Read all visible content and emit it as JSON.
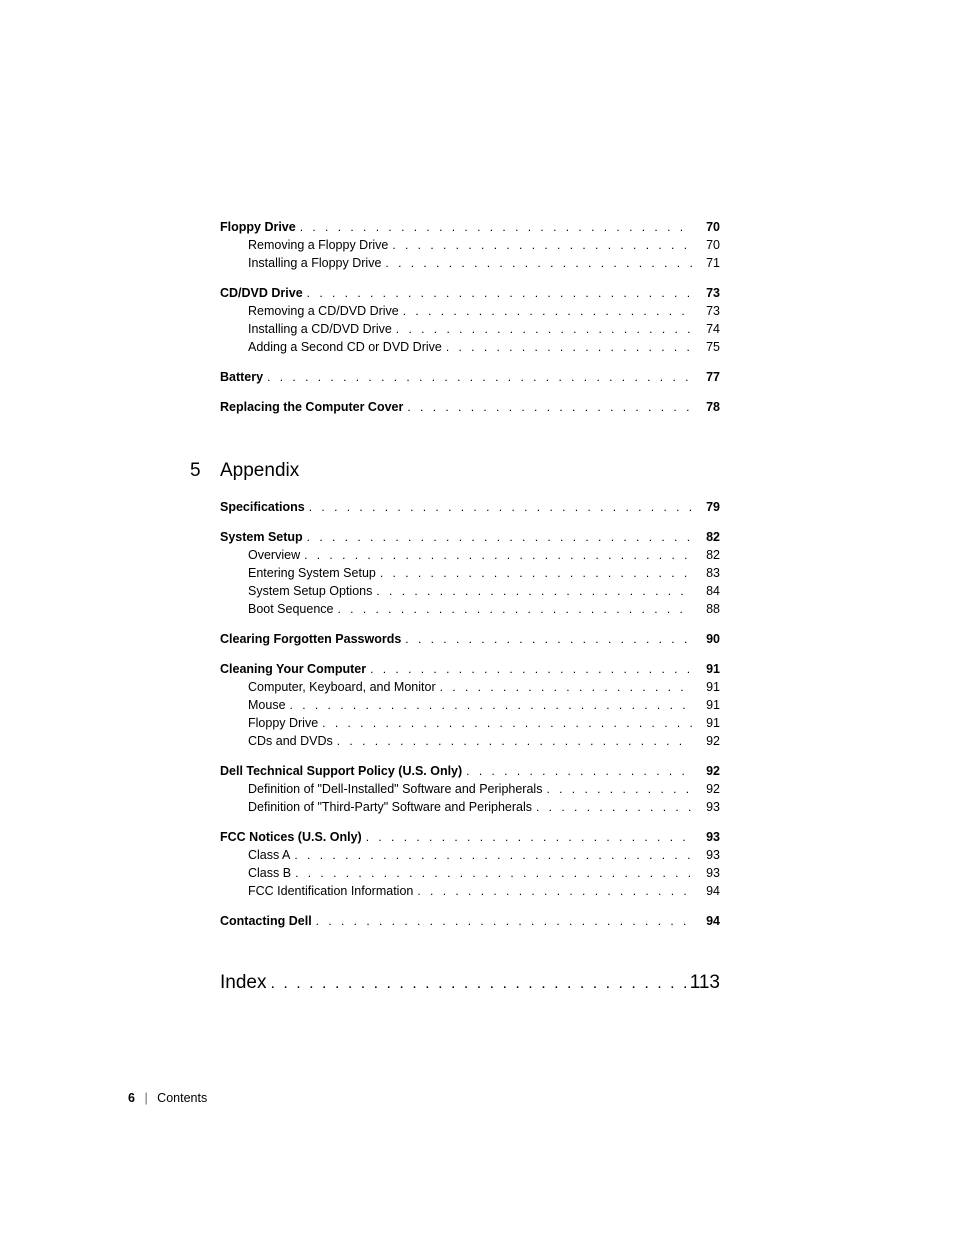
{
  "sections": [
    {
      "heading": {
        "text": "Floppy Drive",
        "page": "70"
      },
      "subs": [
        {
          "text": "Removing a Floppy Drive",
          "page": "70"
        },
        {
          "text": "Installing a Floppy Drive",
          "page": "71"
        }
      ]
    },
    {
      "heading": {
        "text": "CD/DVD Drive",
        "page": "73"
      },
      "subs": [
        {
          "text": "Removing a CD/DVD Drive",
          "page": "73"
        },
        {
          "text": "Installing a CD/DVD Drive",
          "page": "74"
        },
        {
          "text": "Adding a Second CD or DVD Drive",
          "page": "75"
        }
      ]
    },
    {
      "heading": {
        "text": "Battery",
        "page": "77"
      },
      "subs": []
    },
    {
      "heading": {
        "text": "Replacing the Computer Cover",
        "page": "78"
      },
      "subs": []
    }
  ],
  "chapter": {
    "number": "5",
    "title": "Appendix"
  },
  "appendix_sections": [
    {
      "heading": {
        "text": "Specifications",
        "page": "79"
      },
      "subs": []
    },
    {
      "heading": {
        "text": "System Setup",
        "page": "82"
      },
      "subs": [
        {
          "text": "Overview",
          "page": "82"
        },
        {
          "text": "Entering System Setup",
          "page": "83"
        },
        {
          "text": "System Setup Options",
          "page": "84"
        },
        {
          "text": "Boot Sequence",
          "page": "88"
        }
      ]
    },
    {
      "heading": {
        "text": "Clearing Forgotten Passwords",
        "page": "90"
      },
      "subs": []
    },
    {
      "heading": {
        "text": "Cleaning Your Computer",
        "page": "91"
      },
      "subs": [
        {
          "text": "Computer, Keyboard, and Monitor",
          "page": "91"
        },
        {
          "text": "Mouse",
          "page": "91"
        },
        {
          "text": "Floppy Drive",
          "page": "91"
        },
        {
          "text": "CDs and DVDs",
          "page": "92"
        }
      ]
    },
    {
      "heading": {
        "text": "Dell Technical Support Policy (U.S. Only)",
        "page": "92"
      },
      "subs": [
        {
          "text": "Definition of \"Dell-Installed\" Software and Peripherals",
          "page": "92"
        },
        {
          "text": "Definition of \"Third-Party\" Software and Peripherals",
          "page": "93"
        }
      ]
    },
    {
      "heading": {
        "text": "FCC Notices (U.S. Only)",
        "page": "93"
      },
      "subs": [
        {
          "text": "Class A",
          "page": "93"
        },
        {
          "text": "Class B",
          "page": "93"
        },
        {
          "text": "FCC Identification Information",
          "page": "94"
        }
      ]
    },
    {
      "heading": {
        "text": "Contacting Dell",
        "page": "94"
      },
      "subs": []
    }
  ],
  "index": {
    "label": "Index",
    "page": "113"
  },
  "footer": {
    "page_num": "6",
    "separator": "|",
    "label": "Contents"
  }
}
